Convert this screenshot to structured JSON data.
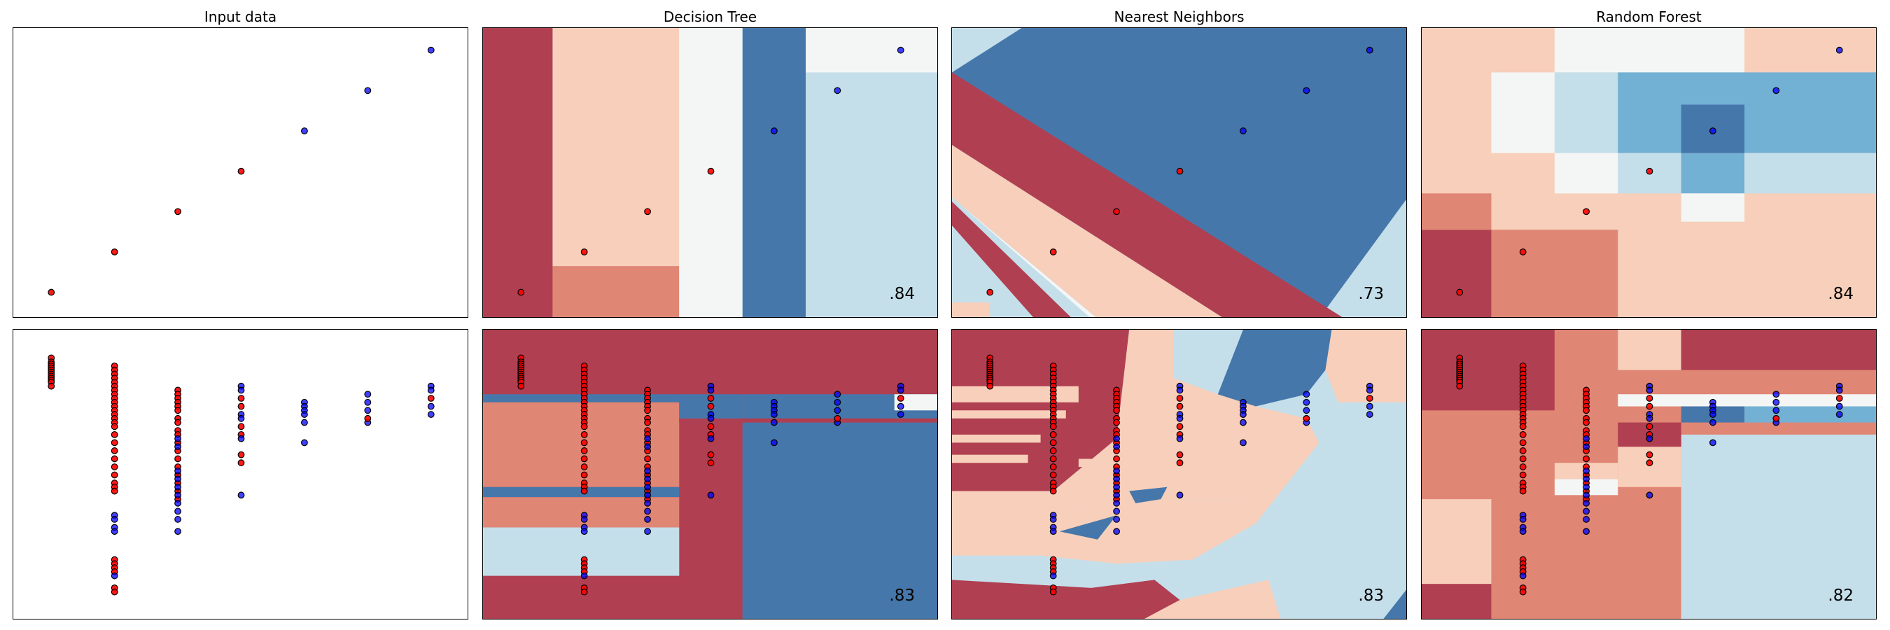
{
  "colors": {
    "dark_red": "#b03f51",
    "mid_red": "#e08675",
    "light_red": "#f7cfba",
    "white": "#f4f6f6",
    "light_blue": "#c4dfea",
    "mid_blue": "#72b0d4",
    "dark_blue": "#4677ab",
    "point_red": "#ff0000",
    "point_blue": "#0000ff"
  },
  "column_titles": [
    "Input data",
    "Decision Tree",
    "Nearest Neighbors",
    "Random Forest"
  ],
  "scores": {
    "row1": [
      ".84",
      ".73",
      ".84"
    ],
    "row2": [
      ".83",
      ".83",
      ".82"
    ]
  },
  "chart_data": [
    {
      "type": "scatter",
      "title": "Input data",
      "xlim": [
        0,
        7.2
      ],
      "ylim": [
        0,
        7.2
      ],
      "points": [
        {
          "x": 0.6,
          "y": 0.65,
          "c": "red"
        },
        {
          "x": 1.6,
          "y": 1.65,
          "c": "red"
        },
        {
          "x": 2.6,
          "y": 2.65,
          "c": "red"
        },
        {
          "x": 3.6,
          "y": 3.65,
          "c": "red"
        },
        {
          "x": 4.6,
          "y": 4.65,
          "c": "blue"
        },
        {
          "x": 5.6,
          "y": 5.65,
          "c": "blue"
        },
        {
          "x": 6.6,
          "y": 6.65,
          "c": "blue"
        }
      ]
    },
    {
      "type": "heatmap",
      "title": "Decision Tree",
      "score": ".84",
      "regions": [
        {
          "x0": 0,
          "x1": 1.1,
          "y0": 0,
          "y1": 7.2,
          "c": "dark_red"
        },
        {
          "x0": 1.1,
          "x1": 3.1,
          "y0": 1.3,
          "y1": 7.2,
          "c": "light_red"
        },
        {
          "x0": 1.1,
          "x1": 3.1,
          "y0": 0,
          "y1": 1.3,
          "c": "mid_red"
        },
        {
          "x0": 3.1,
          "x1": 4.1,
          "y0": 0,
          "y1": 7.2,
          "c": "white"
        },
        {
          "x0": 4.1,
          "x1": 5.1,
          "y0": 0,
          "y1": 7.2,
          "c": "dark_blue"
        },
        {
          "x0": 5.1,
          "x1": 7.2,
          "y0": 0,
          "y1": 6.1,
          "c": "light_blue"
        },
        {
          "x0": 5.1,
          "x1": 7.2,
          "y0": 6.1,
          "y1": 7.2,
          "c": "white"
        }
      ]
    },
    {
      "type": "heatmap",
      "title": "Nearest Neighbors",
      "score": ".73",
      "regions": []
    },
    {
      "type": "heatmap",
      "title": "Random Forest",
      "score": ".84",
      "regions": [
        {
          "x0": 0,
          "x1": 7.2,
          "y0": 0,
          "y1": 7.2,
          "c": "light_red"
        },
        {
          "x0": 0,
          "x1": 1.1,
          "y0": 0,
          "y1": 2.2,
          "c": "dark_red"
        },
        {
          "x0": 0,
          "x1": 1.1,
          "y0": 2.2,
          "y1": 3.1,
          "c": "mid_red"
        },
        {
          "x0": 1.1,
          "x1": 3.1,
          "y0": 0,
          "y1": 2.2,
          "c": "mid_red"
        },
        {
          "x0": 2.1,
          "x1": 5.1,
          "y0": 6.1,
          "y1": 7.2,
          "c": "white"
        },
        {
          "x0": 1.1,
          "x1": 2.1,
          "y0": 4.1,
          "y1": 6.1,
          "c": "white"
        },
        {
          "x0": 2.1,
          "x1": 3.1,
          "y0": 4.1,
          "y1": 6.1,
          "c": "light_blue"
        },
        {
          "x0": 3.1,
          "x1": 7.2,
          "y0": 4.1,
          "y1": 6.1,
          "c": "mid_blue"
        },
        {
          "x0": 2.1,
          "x1": 3.1,
          "y0": 3.1,
          "y1": 4.1,
          "c": "white"
        },
        {
          "x0": 3.1,
          "x1": 4.1,
          "y0": 3.1,
          "y1": 4.1,
          "c": "light_blue"
        },
        {
          "x0": 4.1,
          "x1": 5.1,
          "y0": 3.1,
          "y1": 4.1,
          "c": "mid_blue"
        },
        {
          "x0": 5.1,
          "x1": 7.2,
          "y0": 3.1,
          "y1": 4.1,
          "c": "light_blue"
        },
        {
          "x0": 4.1,
          "x1": 5.1,
          "y0": 2.4,
          "y1": 3.1,
          "c": "white"
        },
        {
          "x0": 4.1,
          "x1": 5.1,
          "y0": 4.1,
          "y1": 5.3,
          "c": "dark_blue"
        }
      ]
    },
    {
      "type": "scatter",
      "title": "",
      "xlim": [
        0,
        7.2
      ],
      "ylim": [
        0,
        7.2
      ],
      "points_note_red_columns": [
        0.6,
        1.6,
        2.6,
        3.6,
        4.6,
        5.6,
        6.6
      ]
    },
    {
      "type": "heatmap",
      "title": "",
      "score": ".83",
      "regions": [
        {
          "x0": 0,
          "x1": 7.2,
          "y0": 0,
          "y1": 7.2,
          "c": "dark_red"
        },
        {
          "x0": 0,
          "x1": 3.1,
          "y0": 5.4,
          "y1": 5.6,
          "c": "dark_blue"
        },
        {
          "x0": 0,
          "x1": 3.1,
          "y0": 3.3,
          "y1": 5.4,
          "c": "mid_red"
        },
        {
          "x0": 0,
          "x1": 3.1,
          "y0": 3.05,
          "y1": 3.3,
          "c": "dark_blue"
        },
        {
          "x0": 0,
          "x1": 3.1,
          "y0": 2.3,
          "y1": 3.05,
          "c": "mid_red"
        },
        {
          "x0": 0,
          "x1": 3.1,
          "y0": 1.1,
          "y1": 2.3,
          "c": "light_blue"
        },
        {
          "x0": 3.1,
          "x1": 4.1,
          "y0": 4.9,
          "y1": 5.6,
          "c": "dark_blue"
        },
        {
          "x0": 4.1,
          "x1": 7.2,
          "y0": 0,
          "y1": 4.9,
          "c": "dark_blue"
        },
        {
          "x0": 4.1,
          "x1": 7.2,
          "y0": 5.0,
          "y1": 5.6,
          "c": "dark_blue"
        },
        {
          "x0": 3.1,
          "x1": 7.2,
          "y0": 4.9,
          "y1": 5.0,
          "c": "dark_red"
        },
        {
          "x0": 6.5,
          "x1": 7.2,
          "y0": 5.2,
          "y1": 5.6,
          "c": "white"
        }
      ]
    },
    {
      "type": "heatmap",
      "title": "",
      "score": ".83",
      "regions": []
    },
    {
      "type": "heatmap",
      "title": "",
      "score": ".82",
      "regions": [
        {
          "x0": 0,
          "x1": 7.2,
          "y0": 0,
          "y1": 7.2,
          "c": "mid_red"
        },
        {
          "x0": 0,
          "x1": 1.1,
          "y0": 0,
          "y1": 0.9,
          "c": "dark_red"
        },
        {
          "x0": 0,
          "x1": 1.1,
          "y0": 0.9,
          "y1": 3.0,
          "c": "light_red"
        },
        {
          "x0": 0,
          "x1": 2.1,
          "y0": 5.2,
          "y1": 7.2,
          "c": "dark_red"
        },
        {
          "x0": 2.1,
          "x1": 3.1,
          "y0": 5.2,
          "y1": 7.2,
          "c": "mid_red"
        },
        {
          "x0": 3.1,
          "x1": 4.1,
          "y0": 6.2,
          "y1": 7.2,
          "c": "light_red"
        },
        {
          "x0": 4.1,
          "x1": 7.2,
          "y0": 6.2,
          "y1": 7.2,
          "c": "dark_red"
        },
        {
          "x0": 3.1,
          "x1": 7.2,
          "y0": 5.3,
          "y1": 5.6,
          "c": "white"
        },
        {
          "x0": 4.1,
          "x1": 5.1,
          "y0": 4.9,
          "y1": 5.3,
          "c": "dark_blue"
        },
        {
          "x0": 5.1,
          "x1": 7.2,
          "y0": 4.9,
          "y1": 5.3,
          "c": "mid_blue"
        },
        {
          "x0": 4.1,
          "x1": 7.2,
          "y0": 0,
          "y1": 4.6,
          "c": "light_blue"
        },
        {
          "x0": 3.1,
          "x1": 4.1,
          "y0": 3.3,
          "y1": 4.3,
          "c": "light_red"
        },
        {
          "x0": 3.1,
          "x1": 4.1,
          "y0": 4.3,
          "y1": 4.9,
          "c": "dark_red"
        },
        {
          "x0": 2.1,
          "x1": 3.1,
          "y0": 3.1,
          "y1": 3.5,
          "c": "white"
        },
        {
          "x0": 2.1,
          "x1": 3.1,
          "y0": 3.5,
          "y1": 3.9,
          "c": "light_red"
        }
      ]
    }
  ]
}
